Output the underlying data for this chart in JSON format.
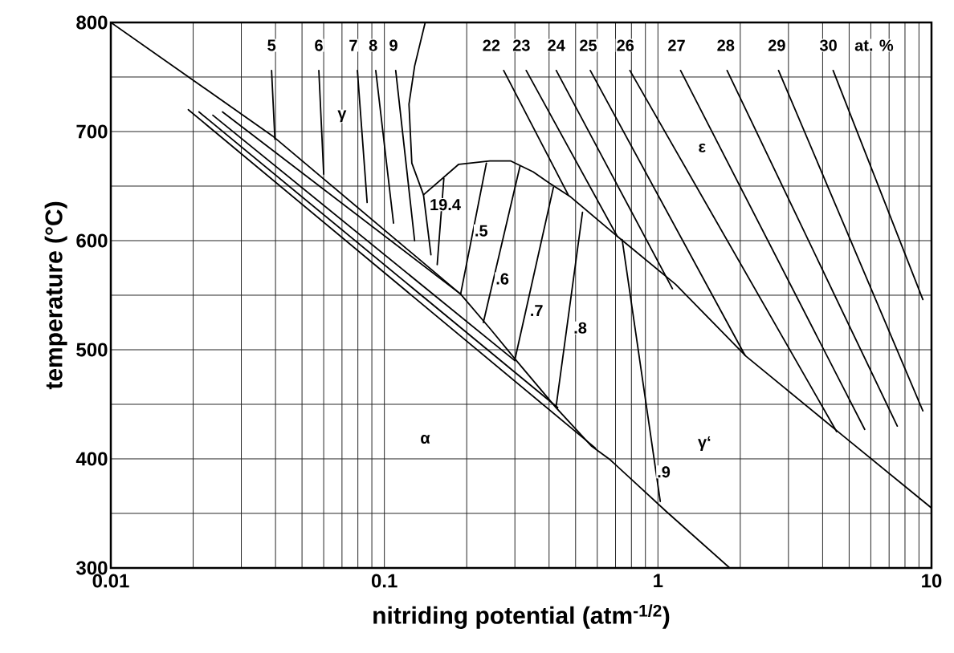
{
  "chart_data": {
    "type": "line",
    "xlabel": "nitriding potential (atm$^{-1/2}$)",
    "ylabel": "temperature (°C)",
    "log": "x",
    "grid": true,
    "xlim": [
      0.01,
      10
    ],
    "ylim": [
      300,
      800
    ],
    "xticks": [
      0.01,
      {
        "value": 0.02,
        "label": null
      },
      {
        "value": 0.03,
        "label": null
      },
      {
        "value": 0.04,
        "label": null
      },
      {
        "value": 0.05,
        "label": null
      },
      {
        "value": 0.06,
        "label": null
      },
      {
        "value": 0.07,
        "label": null
      },
      {
        "value": 0.08,
        "label": null
      },
      {
        "value": 0.09,
        "label": null
      },
      0.1,
      {
        "value": 0.2,
        "label": null
      },
      {
        "value": 0.3,
        "label": null
      },
      {
        "value": 0.4,
        "label": null
      },
      {
        "value": 0.5,
        "label": null
      },
      {
        "value": 0.6,
        "label": null
      },
      {
        "value": 0.7,
        "label": null
      },
      {
        "value": 0.8,
        "label": null
      },
      {
        "value": 0.9,
        "label": null
      },
      1,
      {
        "value": 2,
        "label": null
      },
      {
        "value": 3,
        "label": null
      },
      {
        "value": 4,
        "label": null
      },
      {
        "value": 5,
        "label": null
      },
      {
        "value": 6,
        "label": null
      },
      {
        "value": 7,
        "label": null
      },
      {
        "value": 8,
        "label": null
      },
      {
        "value": 9,
        "label": null
      },
      10
    ],
    "yticks": [
      300,
      {
        "value": 350,
        "label": null
      },
      400,
      {
        "value": 450,
        "label": null
      },
      500,
      {
        "value": 550,
        "label": null
      },
      600,
      {
        "value": 650,
        "label": null
      },
      700,
      {
        "value": 750,
        "label": null
      },
      800
    ],
    "series": [
      {
        "color": "#000000",
        "x": [
          0.01,
          0.039,
          0.19,
          0.246,
          0.304,
          0.424,
          0.57,
          0.67,
          0.86,
          1.07,
          1.83
        ],
        "values": [
          800,
          696,
          551,
          518,
          490,
          447,
          412,
          399,
          374,
          352,
          300
        ]
      },
      {
        "color": "#000000",
        "x": [
          0.139,
          0.187,
          0.243,
          0.29,
          0.35,
          0.4,
          0.48,
          0.71,
          1.16,
          2.1,
          4.6,
          10
        ],
        "values": [
          642,
          670,
          673,
          673,
          663,
          653,
          640,
          604,
          560,
          494,
          424,
          355
        ]
      },
      {
        "color": "#000000",
        "x": [
          0.141,
          0.129,
          0.123,
          0.126,
          0.139,
          0.148
        ],
        "values": [
          800,
          760,
          725,
          671,
          642,
          587
        ]
      },
      {
        "color": "#000000",
        "x": [
          0.0387,
          0.0398
        ],
        "values": [
          756,
          693
        ]
      },
      {
        "color": "#000000",
        "x": [
          0.0576,
          0.06
        ],
        "values": [
          756,
          661
        ]
      },
      {
        "color": "#000000",
        "x": [
          0.0797,
          0.0865
        ],
        "values": [
          756,
          635
        ]
      },
      {
        "color": "#000000",
        "x": [
          0.093,
          0.108
        ],
        "values": [
          756,
          616
        ]
      },
      {
        "color": "#000000",
        "x": [
          0.11,
          0.129
        ],
        "values": [
          756,
          600
        ]
      },
      {
        "color": "#000000",
        "x": [
          0.0192,
          0.59
        ],
        "values": [
          720,
          410
        ]
      },
      {
        "color": "#000000",
        "x": [
          0.021,
          0.43
        ],
        "values": [
          718,
          447
        ]
      },
      {
        "color": "#000000",
        "x": [
          0.0236,
          0.3
        ],
        "values": [
          715,
          490
        ]
      },
      {
        "color": "#000000",
        "x": [
          0.0256,
          0.19
        ],
        "values": [
          718,
          551
        ]
      },
      {
        "color": "#000000",
        "x": [
          0.273,
          0.47
        ],
        "values": [
          756,
          642
        ]
      },
      {
        "color": "#000000",
        "x": [
          0.33,
          0.71
        ],
        "values": [
          756,
          604
        ]
      },
      {
        "color": "#000000",
        "x": [
          0.425,
          1.13
        ],
        "values": [
          756,
          556
        ]
      },
      {
        "color": "#000000",
        "x": [
          0.566,
          2.08
        ],
        "values": [
          756,
          495
        ]
      },
      {
        "color": "#000000",
        "x": [
          0.79,
          4.5
        ],
        "values": [
          756,
          425
        ]
      },
      {
        "color": "#000000",
        "x": [
          1.21,
          5.7
        ],
        "values": [
          756,
          427
        ]
      },
      {
        "color": "#000000",
        "x": [
          1.79,
          7.5
        ],
        "values": [
          756,
          430
        ]
      },
      {
        "color": "#000000",
        "x": [
          2.76,
          9.3
        ],
        "values": [
          756,
          444
        ]
      },
      {
        "color": "#000000",
        "x": [
          4.37,
          9.3
        ],
        "values": [
          756,
          546
        ]
      },
      {
        "color": "#000000",
        "x": [
          0.165,
          0.156
        ],
        "values": [
          657,
          578
        ]
      },
      {
        "color": "#000000",
        "x": [
          0.236,
          0.19
        ],
        "values": [
          671,
          551
        ]
      },
      {
        "color": "#000000",
        "x": [
          0.313,
          0.23
        ],
        "values": [
          668,
          525
        ]
      },
      {
        "color": "#000000",
        "x": [
          0.415,
          0.3
        ],
        "values": [
          649,
          491
        ]
      },
      {
        "color": "#000000",
        "x": [
          0.53,
          0.425
        ],
        "values": [
          626,
          449
        ]
      },
      {
        "color": "#000000",
        "x": [
          0.74,
          1.02
        ],
        "values": [
          601,
          361
        ]
      }
    ],
    "annotations": [
      {
        "text": "5",
        "x": 0.0387,
        "y": 779
      },
      {
        "text": "6",
        "x": 0.0576,
        "y": 779
      },
      {
        "text": "7",
        "x": 0.077,
        "y": 779
      },
      {
        "text": "8",
        "x": 0.091,
        "y": 779
      },
      {
        "text": "9",
        "x": 0.108,
        "y": 779
      },
      {
        "text": "22",
        "x": 0.246,
        "y": 779
      },
      {
        "text": "23",
        "x": 0.317,
        "y": 779
      },
      {
        "text": "24",
        "x": 0.425,
        "y": 779
      },
      {
        "text": "25",
        "x": 0.556,
        "y": 779
      },
      {
        "text": "26",
        "x": 0.76,
        "y": 779
      },
      {
        "text": "27",
        "x": 1.17,
        "y": 779
      },
      {
        "text": "28",
        "x": 1.77,
        "y": 779
      },
      {
        "text": "29",
        "x": 2.72,
        "y": 779
      },
      {
        "text": "30",
        "x": 4.2,
        "y": 779
      },
      "at. %",
      {
        "text": "γ",
        "x": 0.07,
        "y": 714
      },
      {
        "text": "ε",
        "x": 1.45,
        "y": 685
      },
      {
        "text": "α",
        "x": 0.141,
        "y": 418
      },
      {
        "text": "γ‘",
        "x": 1.48,
        "y": 414
      },
      {
        "text": "19.4",
        "x": 0.167,
        "y": 633
      },
      {
        "text": ".5",
        "x": 0.226,
        "y": 609
      },
      {
        "text": ".6",
        "x": 0.27,
        "y": 565
      },
      {
        "text": ".7",
        "x": 0.36,
        "y": 536
      },
      {
        "text": ".8",
        "x": 0.52,
        "y": 520
      },
      {
        "text": ".9",
        "x": 1.05,
        "y": 388
      }
    ]
  }
}
